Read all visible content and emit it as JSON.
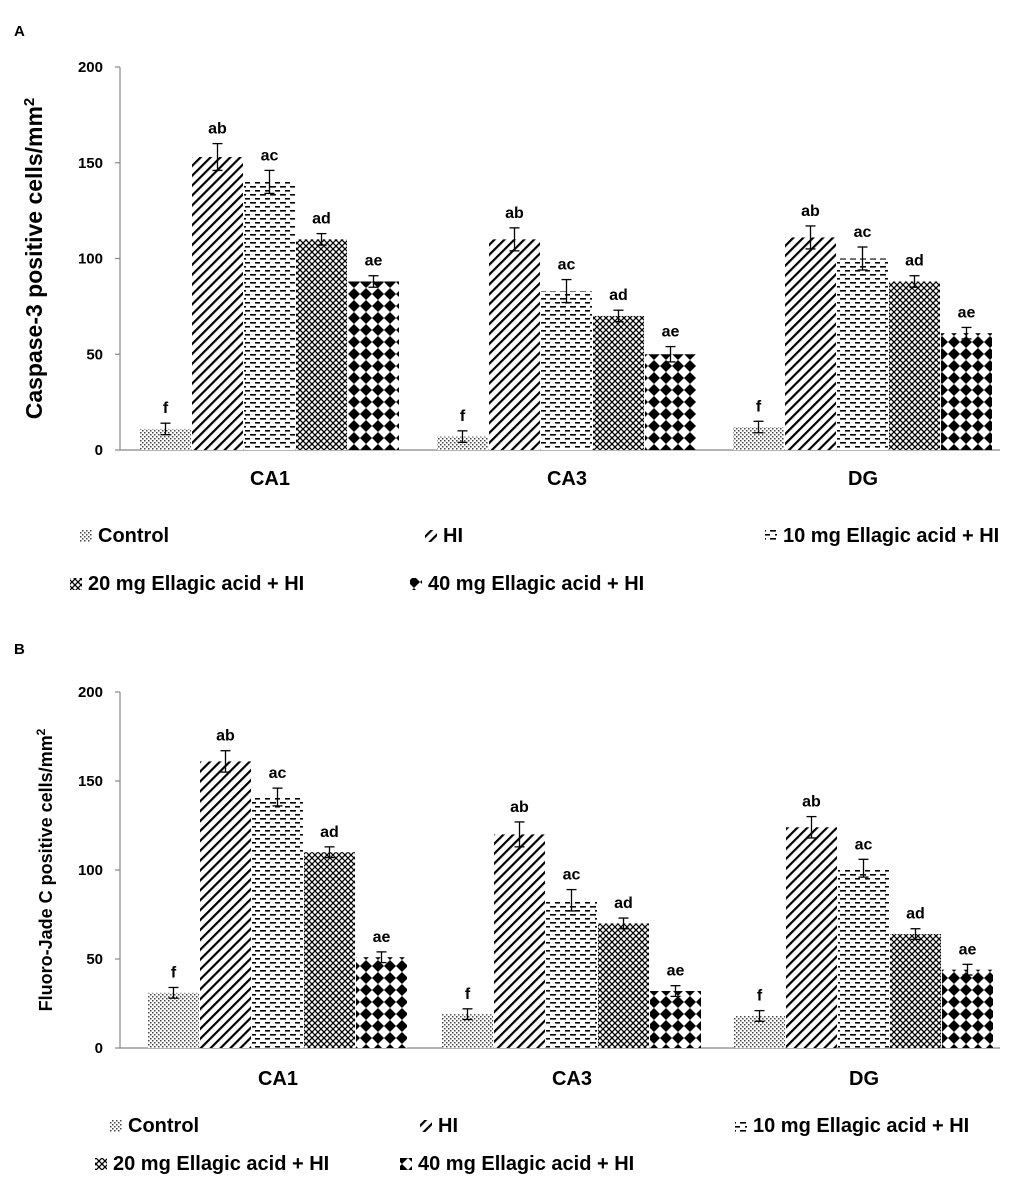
{
  "chart_data": [
    {
      "type": "bar",
      "panel_label": "A",
      "title": "",
      "xlabel": "",
      "ylabel": "Caspase-3 positive cells/mm",
      "ylabel_superscript": "2",
      "ylim": [
        0,
        200
      ],
      "yticks": [
        "0",
        "50",
        "100",
        "150",
        "200"
      ],
      "grid": false,
      "legend_position": "bottom",
      "categories": [
        "CA1",
        "CA3",
        "DG"
      ],
      "series": [
        {
          "name": "Control",
          "pattern": "dots",
          "values": [
            11,
            7,
            12
          ],
          "errors": [
            3,
            3,
            3
          ],
          "labels": [
            "f",
            "f",
            "f"
          ]
        },
        {
          "name": "HI",
          "pattern": "diagonal",
          "values": [
            153,
            110,
            111
          ],
          "errors": [
            7,
            6,
            6
          ],
          "labels": [
            "ab",
            "ab",
            "ab"
          ]
        },
        {
          "name": "10 mg Ellagic acid + HI",
          "pattern": "dashes",
          "values": [
            140,
            83,
            100
          ],
          "errors": [
            6,
            6,
            6
          ],
          "labels": [
            "ac",
            "ac",
            "ac"
          ]
        },
        {
          "name": "20 mg Ellagic acid + HI",
          "pattern": "crosshatch",
          "values": [
            110,
            70,
            88
          ],
          "errors": [
            3,
            3,
            3
          ],
          "labels": [
            "ad",
            "ad",
            "ad"
          ]
        },
        {
          "name": "40 mg Ellagic acid + HI",
          "pattern": "diamonds",
          "values": [
            88,
            50,
            61
          ],
          "errors": [
            3,
            4,
            3
          ],
          "labels": [
            "ae",
            "ae",
            "ae"
          ]
        }
      ]
    },
    {
      "type": "bar",
      "panel_label": "B",
      "title": "",
      "xlabel": "",
      "ylabel": "Fluoro-Jade  C positive  cells/mm",
      "ylabel_superscript": "2",
      "ylim": [
        0,
        200
      ],
      "yticks": [
        "0",
        "50",
        "100",
        "150",
        "200"
      ],
      "grid": false,
      "legend_position": "bottom",
      "categories": [
        "CA1",
        "CA3",
        "DG"
      ],
      "series": [
        {
          "name": "Control",
          "pattern": "dots",
          "values": [
            31,
            19,
            18
          ],
          "errors": [
            3,
            3,
            3
          ],
          "labels": [
            "f",
            "f",
            "f"
          ]
        },
        {
          "name": "HI",
          "pattern": "diagonal",
          "values": [
            161,
            120,
            124
          ],
          "errors": [
            6,
            7,
            6
          ],
          "labels": [
            "ab",
            "ab",
            "ab"
          ]
        },
        {
          "name": "10 mg Ellagic acid + HI",
          "pattern": "dashes",
          "values": [
            141,
            83,
            101
          ],
          "errors": [
            5,
            6,
            5
          ],
          "labels": [
            "ac",
            "ac",
            "ac"
          ]
        },
        {
          "name": "20 mg Ellagic acid + HI",
          "pattern": "crosshatch",
          "values": [
            110,
            70,
            64
          ],
          "errors": [
            3,
            3,
            3
          ],
          "labels": [
            "ad",
            "ad",
            "ad"
          ]
        },
        {
          "name": "40 mg Ellagic acid + HI",
          "pattern": "diamonds",
          "values": [
            51,
            32,
            44
          ],
          "errors": [
            3,
            3,
            3
          ],
          "labels": [
            "ae",
            "ae",
            "ae"
          ]
        }
      ]
    }
  ]
}
